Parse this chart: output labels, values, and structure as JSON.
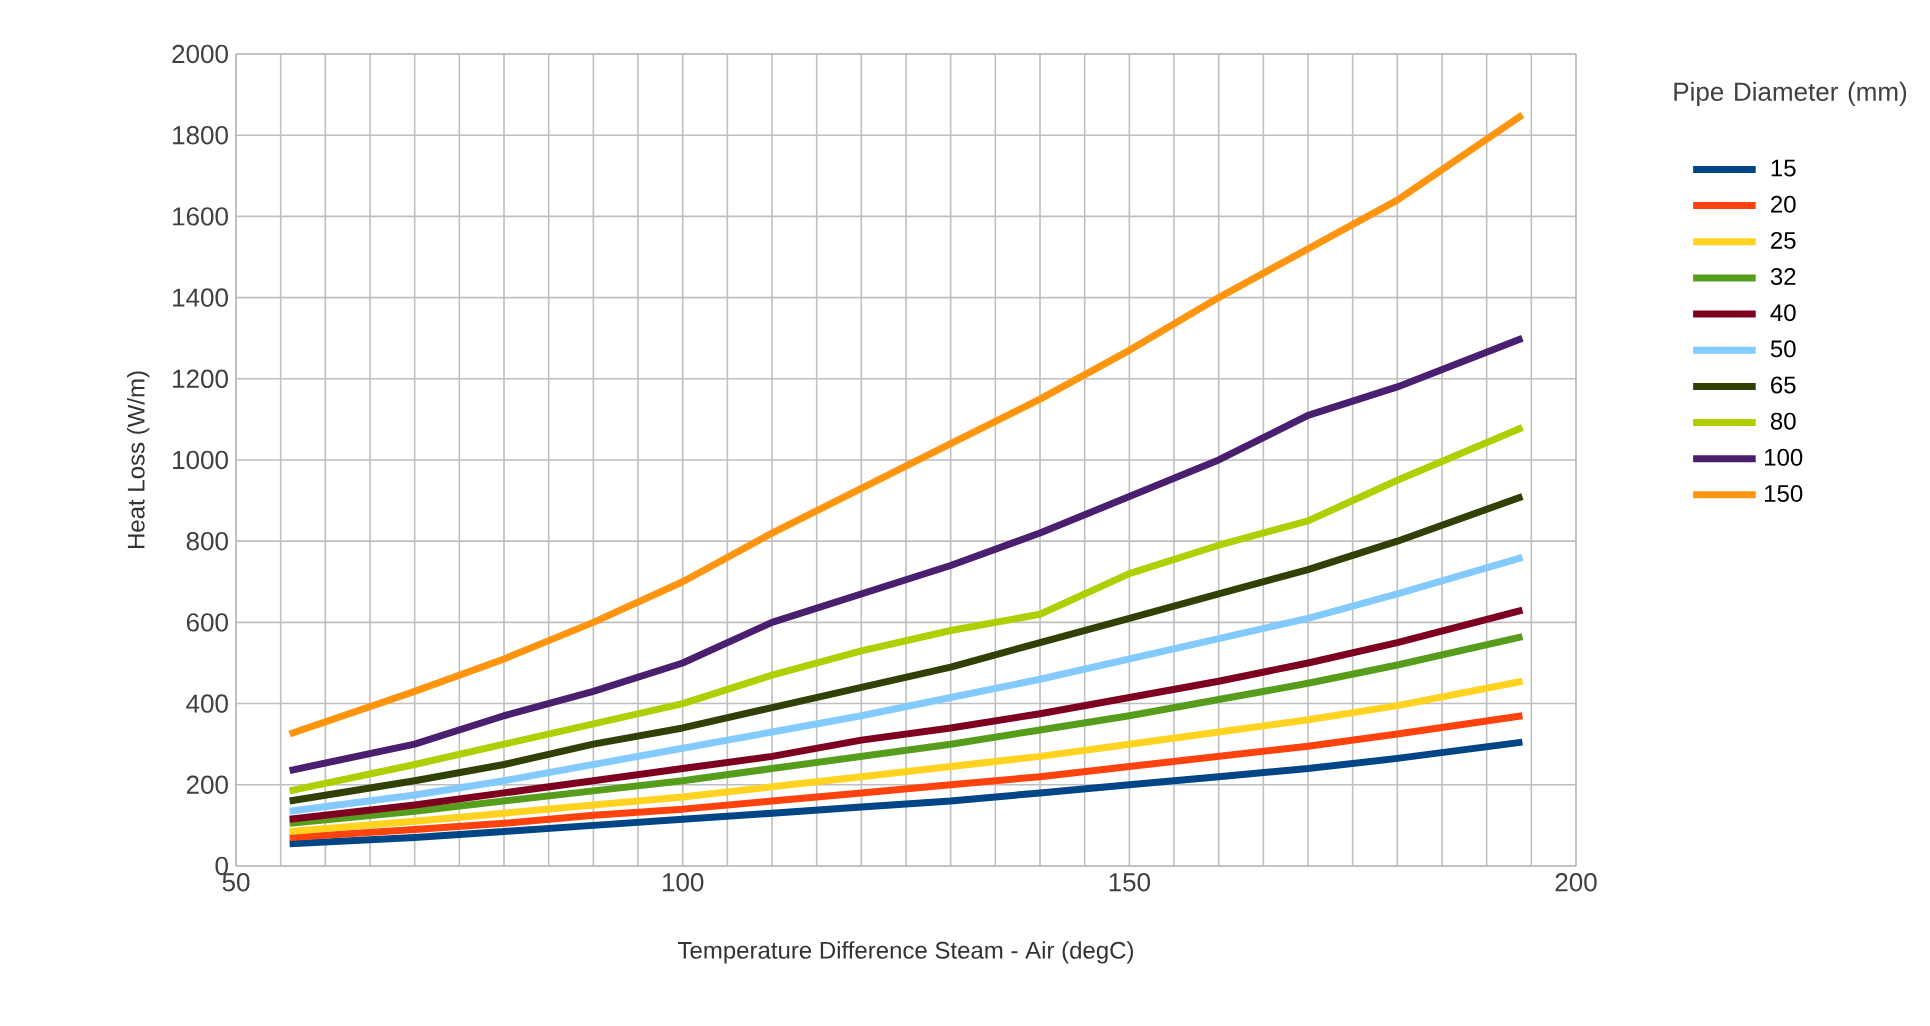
{
  "chart_data": {
    "type": "line",
    "xlabel": "Temperature Difference Steam - Air (degC)",
    "ylabel": "Heat Loss (W/m)",
    "legend_title": "Pipe Diameter (mm)",
    "legend": "right",
    "grid": true,
    "marker": "none",
    "line_style": "solid",
    "x": [
      56,
      70,
      80,
      90,
      100,
      110,
      120,
      130,
      140,
      150,
      160,
      170,
      180,
      194
    ],
    "xlim": [
      50,
      200
    ],
    "ylim": [
      0,
      2000
    ],
    "xticks": [
      50,
      {
        "value": 55,
        "label": null
      },
      {
        "value": 60,
        "label": null
      },
      {
        "value": 65,
        "label": null
      },
      {
        "value": 70,
        "label": null
      },
      {
        "value": 75,
        "label": null
      },
      {
        "value": 80,
        "label": null
      },
      {
        "value": 85,
        "label": null
      },
      {
        "value": 90,
        "label": null
      },
      {
        "value": 95,
        "label": null
      },
      100,
      {
        "value": 105,
        "label": null
      },
      {
        "value": 110,
        "label": null
      },
      {
        "value": 115,
        "label": null
      },
      {
        "value": 120,
        "label": null
      },
      {
        "value": 125,
        "label": null
      },
      {
        "value": 130,
        "label": null
      },
      {
        "value": 135,
        "label": null
      },
      {
        "value": 140,
        "label": null
      },
      {
        "value": 145,
        "label": null
      },
      150,
      {
        "value": 155,
        "label": null
      },
      {
        "value": 160,
        "label": null
      },
      {
        "value": 165,
        "label": null
      },
      {
        "value": 170,
        "label": null
      },
      {
        "value": 175,
        "label": null
      },
      {
        "value": 180,
        "label": null
      },
      {
        "value": 185,
        "label": null
      },
      {
        "value": 190,
        "label": null
      },
      {
        "value": 195,
        "label": null
      },
      200
    ],
    "yticks": [
      0,
      200,
      400,
      600,
      800,
      1000,
      1200,
      1400,
      1600,
      1800,
      2000
    ],
    "series": [
      {
        "name": "15",
        "color": "#004586",
        "values": [
          55,
          70,
          85,
          100,
          115,
          130,
          145,
          160,
          180,
          200,
          220,
          240,
          265,
          305
        ]
      },
      {
        "name": "20",
        "color": "#ff420e",
        "values": [
          70,
          90,
          105,
          125,
          140,
          160,
          180,
          200,
          220,
          245,
          270,
          295,
          325,
          370
        ]
      },
      {
        "name": "25",
        "color": "#ffd320",
        "values": [
          85,
          110,
          130,
          150,
          170,
          195,
          220,
          245,
          270,
          300,
          330,
          360,
          395,
          455
        ]
      },
      {
        "name": "32",
        "color": "#579d1c",
        "values": [
          105,
          135,
          160,
          185,
          210,
          240,
          270,
          300,
          335,
          370,
          410,
          450,
          495,
          565
        ]
      },
      {
        "name": "40",
        "color": "#7e0021",
        "values": [
          115,
          150,
          180,
          210,
          240,
          270,
          310,
          340,
          375,
          415,
          455,
          500,
          550,
          630
        ]
      },
      {
        "name": "50",
        "color": "#83caff",
        "values": [
          135,
          175,
          210,
          250,
          290,
          330,
          370,
          415,
          460,
          510,
          560,
          610,
          670,
          760
        ]
      },
      {
        "name": "65",
        "color": "#314004",
        "values": [
          160,
          210,
          250,
          300,
          340,
          390,
          440,
          490,
          550,
          610,
          670,
          730,
          800,
          910
        ]
      },
      {
        "name": "80",
        "color": "#aecf00",
        "values": [
          185,
          250,
          300,
          350,
          400,
          470,
          530,
          580,
          620,
          720,
          790,
          850,
          950,
          1080
        ]
      },
      {
        "name": "100",
        "color": "#4b1f6f",
        "values": [
          235,
          300,
          370,
          430,
          500,
          600,
          670,
          740,
          820,
          910,
          1000,
          1110,
          1180,
          1300
        ]
      },
      {
        "name": "150",
        "color": "#ff950e",
        "values": [
          325,
          430,
          510,
          600,
          700,
          820,
          930,
          1040,
          1150,
          1270,
          1400,
          1520,
          1640,
          1850
        ]
      }
    ]
  }
}
